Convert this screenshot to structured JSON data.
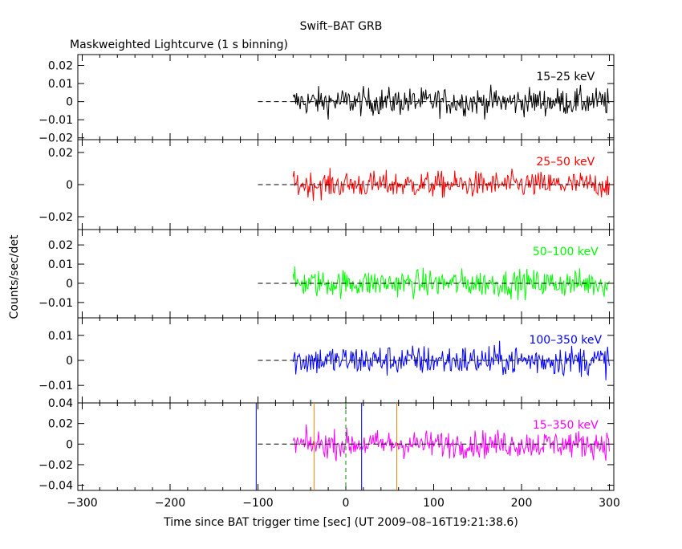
{
  "figure": {
    "title": "Swift–BAT GRB",
    "subtitle": "Maskweighted Lightcurve (1 s binning)",
    "ylabel": "Counts/sec/det",
    "xlabel": "Time since BAT trigger time [sec] (UT 2009–08–16T19:21:38.6)"
  },
  "chart_data": [
    {
      "type": "line",
      "name": "15–25 keV",
      "label": "15–25 keV",
      "color": "#000000",
      "xlim": [
        -305,
        305
      ],
      "ylim": [
        -0.021,
        0.026
      ],
      "yticks": [
        -0.02,
        -0.01,
        0,
        0.01,
        0.02
      ],
      "ytick_labels": [
        "−0.02",
        "−0.01",
        "0",
        "0.01",
        "0.02"
      ],
      "noise_amplitude": 0.0075,
      "data_range": [
        -60,
        300
      ],
      "dashed_zero_from": -100
    },
    {
      "type": "line",
      "name": "25–50 keV",
      "label": "25–50 keV",
      "color": "#ff0000",
      "xlim": [
        -305,
        305
      ],
      "ylim": [
        -0.028,
        0.028
      ],
      "yticks": [
        -0.02,
        0,
        0.02
      ],
      "ytick_labels": [
        "−0.02",
        "0",
        "0.02"
      ],
      "noise_amplitude": 0.008,
      "data_range": [
        -60,
        300
      ],
      "dashed_zero_from": -100
    },
    {
      "type": "line",
      "name": "50–100 keV",
      "label": "50–100 keV",
      "color": "#00ff00",
      "xlim": [
        -305,
        305
      ],
      "ylim": [
        -0.018,
        0.028
      ],
      "yticks": [
        -0.01,
        0,
        0.01,
        0.02
      ],
      "ytick_labels": [
        "−0.01",
        "0",
        "0.01",
        "0.02"
      ],
      "noise_amplitude": 0.007,
      "data_range": [
        -60,
        300
      ],
      "dashed_zero_from": -100
    },
    {
      "type": "line",
      "name": "100–350 keV",
      "label": "100–350 keV",
      "color": "#0000ff",
      "xlim": [
        -305,
        305
      ],
      "ylim": [
        -0.017,
        0.017
      ],
      "yticks": [
        -0.01,
        0,
        0.01
      ],
      "ytick_labels": [
        "−0.01",
        "0",
        "0.01"
      ],
      "noise_amplitude": 0.006,
      "data_range": [
        -60,
        300
      ],
      "dashed_zero_from": -100
    },
    {
      "type": "line",
      "name": "15–350 keV",
      "label": "15–350 keV",
      "color": "#ff00ff",
      "xlim": [
        -305,
        305
      ],
      "ylim": [
        -0.045,
        0.04
      ],
      "yticks": [
        -0.04,
        -0.02,
        0,
        0.02,
        0.04
      ],
      "ytick_labels": [
        "−0.04",
        "−0.02",
        "0",
        "0.02",
        "0.04"
      ],
      "noise_amplitude": 0.013,
      "data_range": [
        -60,
        300
      ],
      "dashed_zero_from": -100,
      "xticks": [
        -300,
        -200,
        -100,
        0,
        100,
        200,
        300
      ],
      "xtick_labels": [
        "−300",
        "−200",
        "−100",
        "0",
        "100",
        "200",
        "300"
      ],
      "vlines": [
        {
          "x": -102,
          "color": "#0000aa",
          "style": "solid"
        },
        {
          "x": -36,
          "color": "#ff8000",
          "style": "solid"
        },
        {
          "x": 0,
          "color": "#008800",
          "style": "dashed"
        },
        {
          "x": 18,
          "color": "#0000aa",
          "style": "solid"
        },
        {
          "x": 58,
          "color": "#ff8000",
          "style": "solid"
        }
      ]
    }
  ]
}
